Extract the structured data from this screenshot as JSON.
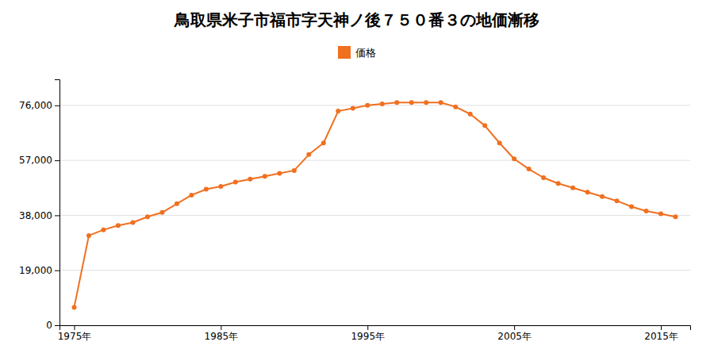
{
  "chart_data": {
    "type": "line",
    "title": "鳥取県米子市福市字天神ノ後７５０番３の地価漸移",
    "x": [
      1975,
      1976,
      1977,
      1978,
      1979,
      1980,
      1981,
      1982,
      1983,
      1984,
      1985,
      1986,
      1987,
      1988,
      1989,
      1990,
      1991,
      1992,
      1993,
      1994,
      1995,
      1996,
      1997,
      1998,
      1999,
      2000,
      2001,
      2002,
      2003,
      2004,
      2005,
      2006,
      2007,
      2008,
      2009,
      2010,
      2011,
      2012,
      2013,
      2014,
      2015,
      2016
    ],
    "series": [
      {
        "name": "価格",
        "color": "#f07020",
        "marker": "circle",
        "values": [
          6200,
          31000,
          33000,
          34500,
          35500,
          37500,
          39000,
          42000,
          45000,
          47000,
          48000,
          49500,
          50500,
          51500,
          52500,
          53500,
          59000,
          63000,
          74000,
          75000,
          76000,
          76500,
          77000,
          77000,
          77000,
          77000,
          75500,
          73000,
          69000,
          63000,
          57500,
          54000,
          51000,
          49000,
          47500,
          46000,
          44500,
          43000,
          41000,
          39500,
          38500,
          37500
        ]
      }
    ],
    "xlim": [
      1974,
      2017
    ],
    "xticks": [
      {
        "value": 1975,
        "label": "1975年"
      },
      {
        "value": 1985,
        "label": "1985年"
      },
      {
        "value": 1995,
        "label": "1995年"
      },
      {
        "value": 2005,
        "label": "2005年"
      },
      {
        "value": 2015,
        "label": "2015年"
      }
    ],
    "ylim": [
      0,
      85000
    ],
    "yticks": [
      0,
      {
        "value": 19000,
        "label": "19,000"
      },
      {
        "value": 38000,
        "label": "38,000"
      },
      {
        "value": 57000,
        "label": "57,000"
      },
      {
        "value": 76000,
        "label": "76,000"
      }
    ],
    "grid": "y",
    "legend": "top"
  }
}
